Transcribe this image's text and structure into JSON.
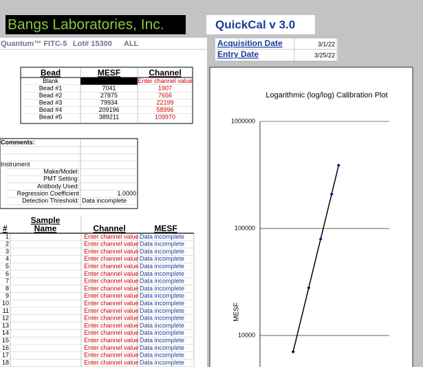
{
  "header": {
    "company": "Bangs Laboratories, Inc.",
    "app": "QuickCal v 3.0"
  },
  "info": {
    "product": "Quantum™ FITC-5",
    "lot": "Lot# 15300",
    "scope": "ALL",
    "acquisition_label": "Acquisition Date",
    "acquisition_date": "3/1/22",
    "entry_label": "Entry Date",
    "entry_date": "3/25/22"
  },
  "bead_table": {
    "columns": [
      "Bead",
      "MESF",
      "Channel"
    ],
    "rows": [
      {
        "bead": "Blank",
        "channel": "Enter channel value"
      },
      {
        "bead": "Bead #1",
        "mesf": 7041,
        "channel": 1907
      },
      {
        "bead": "Bead #2",
        "mesf": 27875,
        "channel": 7656
      },
      {
        "bead": "Bead #3",
        "mesf": 79934,
        "channel": 22199
      },
      {
        "bead": "Bead #4",
        "mesf": 209196,
        "channel": 58996
      },
      {
        "bead": "Bead #5",
        "mesf": 389211,
        "channel": 109970
      }
    ]
  },
  "comments": {
    "label": "Comments:",
    "instrument": "Instrument",
    "fields": [
      {
        "label": "Make/Model:"
      },
      {
        "label": "PMT Setting:"
      },
      {
        "label": "Antibody Used:"
      },
      {
        "label": "Regression Coefficient",
        "value": "1.0000"
      },
      {
        "label": "Detection Threshold:",
        "value": "Data incomplete"
      }
    ]
  },
  "sample_table": {
    "name_header": [
      "Sample",
      "Name"
    ],
    "columns": [
      "#",
      "Channel",
      "MESF"
    ],
    "rows": [
      {
        "n": 1,
        "channel": "Enter channel value",
        "mesf": "Data incomplete"
      },
      {
        "n": 2,
        "channel": "Enter channel value",
        "mesf": "Data incomplete"
      },
      {
        "n": 3,
        "channel": "Enter channel value",
        "mesf": "Data incomplete"
      },
      {
        "n": 4,
        "channel": "Enter channel value",
        "mesf": "Data incomplete"
      },
      {
        "n": 5,
        "channel": "Enter channel value",
        "mesf": "Data incomplete"
      },
      {
        "n": 6,
        "channel": "Enter channel value",
        "mesf": "Data incomplete"
      },
      {
        "n": 7,
        "channel": "Enter channel value",
        "mesf": "Data incomplete"
      },
      {
        "n": 8,
        "channel": "Enter channel value",
        "mesf": "Data incomplete"
      },
      {
        "n": 9,
        "channel": "Enter channel value",
        "mesf": "Data incomplete"
      },
      {
        "n": 10,
        "channel": "Enter channel value",
        "mesf": "Data incomplete"
      },
      {
        "n": 11,
        "channel": "Enter channel value",
        "mesf": "Data incomplete"
      },
      {
        "n": 12,
        "channel": "Enter channel value",
        "mesf": "Data incomplete"
      },
      {
        "n": 13,
        "channel": "Enter channel value",
        "mesf": "Data incomplete"
      },
      {
        "n": 14,
        "channel": "Enter channel value",
        "mesf": "Data incomplete"
      },
      {
        "n": 15,
        "channel": "Enter channel value",
        "mesf": "Data incomplete"
      },
      {
        "n": 16,
        "channel": "Enter channel value",
        "mesf": "Data incomplete"
      },
      {
        "n": 17,
        "channel": "Enter channel value",
        "mesf": "Data incomplete"
      },
      {
        "n": 18,
        "channel": "Enter channel value",
        "mesf": "Data incomplete"
      }
    ]
  },
  "chart_data": {
    "type": "line",
    "title": "Logarithmic (log/log) Calibration Plot",
    "y_label": "MESF",
    "x": [
      1907,
      7656,
      22199,
      58996,
      109970
    ],
    "series": [
      {
        "values": [
          7041,
          27875,
          79934,
          209196,
          389211
        ],
        "color": "#000000",
        "marker_color": "#000080"
      }
    ],
    "xlim": [
      100,
      10000000
    ],
    "ylim": [
      5000,
      1000000
    ],
    "yticks": [
      10000,
      100000,
      1000000
    ],
    "log_x": true,
    "log_y": true,
    "grid": true
  }
}
